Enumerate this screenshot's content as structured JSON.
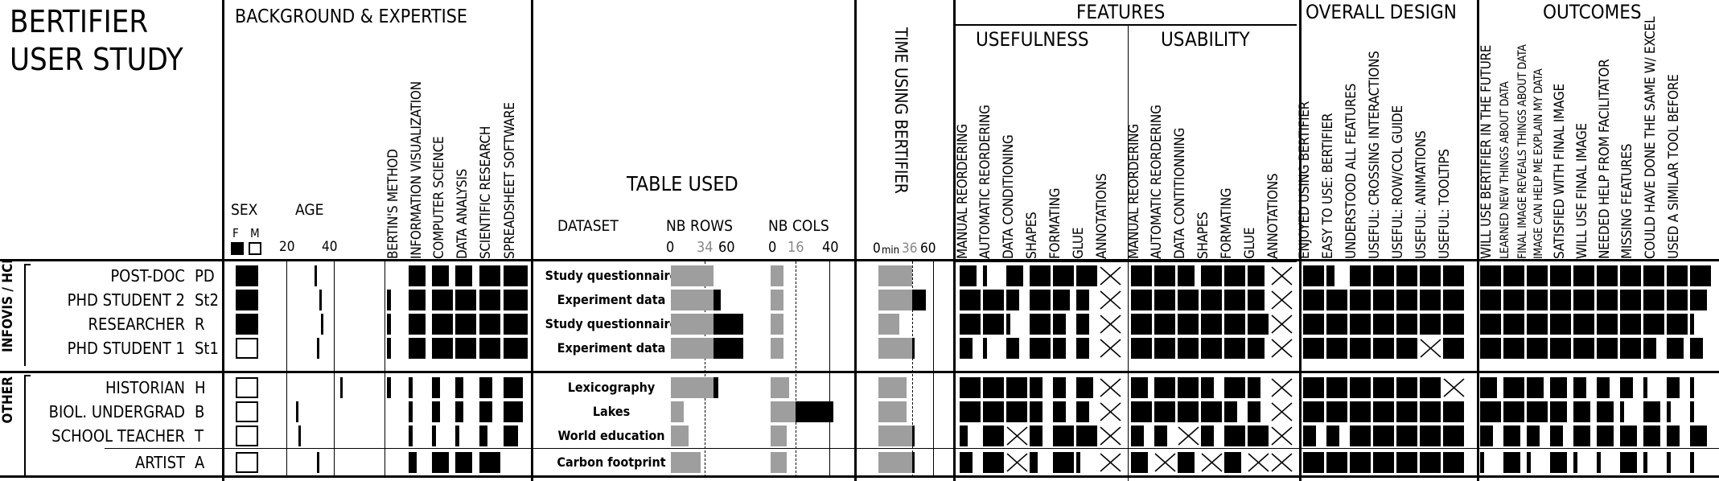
{
  "title": {
    "line1": "BERTIFIER",
    "line2": "USER STUDY"
  },
  "sections": {
    "background": "BACKGROUND & EXPERTISE",
    "table_used": "TABLE USED",
    "time": "TIME USING BERTIFIER",
    "features": "FEATURES",
    "usefulness": "USEFULNESS",
    "usability": "USABILITY",
    "overall": "OVERALL DESIGN",
    "outcomes": "OUTCOMES"
  },
  "bg_labels": {
    "sex": "SEX",
    "age": "AGE",
    "f": "F",
    "m": "M",
    "age20": "20",
    "age40": "40"
  },
  "expertise_cols": [
    "BERTIN'S METHOD",
    "INFORMATION VISUALIZATION",
    "COMPUTER SCIENCE",
    "DATA ANALYSIS",
    "SCIENTIFIC RESEARCH",
    "SPREADSHEET SOFTWARE"
  ],
  "table_labels": {
    "dataset": "DATASET",
    "nbrows": "NB ROWS",
    "nbcols": "NB COLS",
    "r0": "0",
    "r34": "34",
    "r60": "60",
    "c0": "0",
    "c16": "16",
    "c40": "40"
  },
  "time_labels": {
    "t0": "0",
    "min": "min",
    "t36": "36",
    "t60": "60"
  },
  "usefulness_cols": [
    "MANUAL REORDERING",
    "AUTOMATIC REORDERING",
    "DATA CONDITIONING",
    "SHAPES",
    "FORMATING",
    "GLUE",
    "ANNOTATIONS"
  ],
  "usability_cols": [
    "MANUAL REORDERING",
    "AUTOMATIC REORDERING",
    "DATA CONTITIONNING",
    "SHAPES",
    "FORMATING",
    "GLUE",
    "ANNOTATIONS"
  ],
  "overall_cols": [
    "ENJOYED USING BERTIFIER",
    "EASY TO USE: BERTIFIER",
    "UNDERSTOOD ALL FEATURES",
    "USEFUL: CROSSING INTERACTIONS",
    "USEFUL: ROW/COL GUIDE",
    "USEFUL: ANIMATIONS",
    "USEFUL: TOOLTIPS"
  ],
  "outcomes_cols": [
    "WILL USE BERTIFIER IN THE FUTURE",
    "LEARNED NEW THINGS ABOUT DATA",
    "FINAL IMAGE REVEALS THINGS ABOUT DATA",
    "IMAGE CAN HELP ME EXPLAIN MY DATA",
    "SATISFIED WITH FINAL IMAGE",
    "WILL USE FINAL IMAGE",
    "NEEDED HELP FROM FACILITATOR",
    "MISSING FEATURES",
    "COULD HAVE DONE THE SAME W/ EXCEL",
    "USED A SIMILAR TOOL BEFORE"
  ],
  "groups": [
    {
      "label": "INFOVIS / HCI",
      "participants": [
        {
          "name": "POST-DOC",
          "code": "PD",
          "sex": "F",
          "age": 34,
          "exp": [
            0,
            4,
            4,
            4,
            5,
            5
          ],
          "dataset": "Study questionnaire",
          "rows": 34,
          "cols": 8,
          "time": 36,
          "useful": [
            4,
            1,
            4,
            5,
            5,
            5,
            -1
          ],
          "usab": [
            5,
            5,
            4,
            5,
            5,
            4,
            -1
          ],
          "overall": [
            5,
            2,
            5,
            5,
            5,
            5,
            5
          ],
          "outcomes": [
            5,
            5,
            5,
            5,
            5,
            5,
            5,
            5,
            5,
            5
          ]
        },
        {
          "name": "PHD STUDENT 2",
          "code": "St2",
          "sex": "F",
          "age": 36,
          "exp": [
            2,
            4,
            5,
            5,
            5,
            5
          ],
          "dataset": "Experiment data",
          "rows": 40,
          "cols": 8,
          "time": 50,
          "useful": [
            5,
            5,
            3,
            5,
            4,
            3,
            -1
          ],
          "usab": [
            5,
            5,
            5,
            5,
            5,
            4,
            -1
          ],
          "overall": [
            5,
            5,
            5,
            5,
            5,
            5,
            5
          ],
          "outcomes": [
            5,
            5,
            5,
            5,
            5,
            5,
            5,
            5,
            5,
            4
          ]
        },
        {
          "name": "RESEARCHER",
          "code": "R",
          "sex": "F",
          "age": 37,
          "exp": [
            2,
            4,
            5,
            5,
            5,
            5
          ],
          "dataset": "Study questionnaire",
          "rows": 58,
          "cols": 8,
          "time": 22,
          "useful": [
            5,
            5,
            1,
            5,
            3,
            3,
            -1
          ],
          "usab": [
            5,
            5,
            5,
            5,
            5,
            5,
            -1
          ],
          "overall": [
            5,
            5,
            5,
            5,
            5,
            5,
            5
          ],
          "outcomes": [
            5,
            5,
            5,
            5,
            5,
            5,
            5,
            5,
            5,
            1
          ]
        },
        {
          "name": "PHD STUDENT 1",
          "code": "St1",
          "sex": "M",
          "age": 35,
          "exp": [
            1,
            4,
            5,
            5,
            5,
            5
          ],
          "dataset": "Experiment data",
          "rows": 58,
          "cols": 8,
          "time": 38,
          "useful": [
            3,
            1,
            3,
            5,
            3,
            3,
            -1
          ],
          "usab": [
            5,
            5,
            5,
            5,
            5,
            4,
            -1
          ],
          "overall": [
            5,
            5,
            5,
            5,
            5,
            -1,
            5
          ],
          "outcomes": [
            5,
            5,
            5,
            5,
            5,
            5,
            5,
            3,
            4,
            3
          ]
        }
      ]
    },
    {
      "label": "OTHER",
      "participants": [
        {
          "name": "HISTORIAN",
          "code": "H",
          "sex": "M",
          "age": 46,
          "exp": [
            2,
            1,
            2,
            2,
            3,
            4
          ],
          "dataset": "Lexicography",
          "rows": 38,
          "cols": 12,
          "time": 30,
          "useful": [
            5,
            5,
            5,
            3,
            3,
            4,
            -1
          ],
          "usab": [
            4,
            5,
            5,
            3,
            5,
            3,
            -1
          ],
          "overall": [
            5,
            5,
            5,
            5,
            5,
            5,
            -1
          ],
          "outcomes": [
            4,
            5,
            4,
            4,
            3,
            3,
            3,
            1,
            3,
            1
          ]
        },
        {
          "name": "BIOL. UNDERGRAD",
          "code": "B",
          "sex": "M",
          "age": 25,
          "exp": [
            0,
            1,
            2,
            2,
            3,
            4
          ],
          "dataset": "Lakes",
          "rows": 10,
          "cols": 40,
          "time": 30,
          "useful": [
            5,
            5,
            5,
            3,
            3,
            3,
            -1
          ],
          "usab": [
            5,
            5,
            5,
            5,
            3,
            3,
            -1
          ],
          "overall": [
            5,
            5,
            5,
            5,
            5,
            5,
            5
          ],
          "outcomes": [
            5,
            5,
            5,
            4,
            4,
            4,
            1,
            4,
            1,
            1
          ]
        },
        {
          "name": "SCHOOL TEACHER",
          "code": "T",
          "sex": "M",
          "age": 26,
          "exp": [
            0,
            1,
            1,
            1,
            2,
            3
          ],
          "dataset": "World education",
          "rows": 14,
          "cols": 10,
          "time": 38,
          "useful": [
            2,
            5,
            -1,
            3,
            5,
            5,
            -1
          ],
          "usab": [
            3,
            3,
            -1,
            3,
            5,
            5,
            -1
          ],
          "overall": [
            3,
            3,
            5,
            5,
            5,
            5,
            5
          ],
          "outcomes": [
            3,
            4,
            3,
            3,
            4,
            4,
            4,
            4,
            3,
            4
          ]
        },
        {
          "name": "ARTIST",
          "code": "A",
          "sex": "M",
          "age": 35,
          "exp": [
            0,
            2,
            4,
            4,
            5,
            0
          ],
          "dataset": "Carbon footprint",
          "rows": 24,
          "cols": 10,
          "time": 38,
          "useful": [
            3,
            5,
            -1,
            2,
            5,
            1,
            -1
          ],
          "usab": [
            4,
            -1,
            4,
            -1,
            4,
            -1,
            -1
          ],
          "overall": [
            5,
            5,
            5,
            5,
            5,
            5,
            5
          ],
          "outcomes": [
            1,
            4,
            1,
            4,
            1,
            1,
            4,
            1,
            1,
            1
          ]
        }
      ]
    }
  ]
}
